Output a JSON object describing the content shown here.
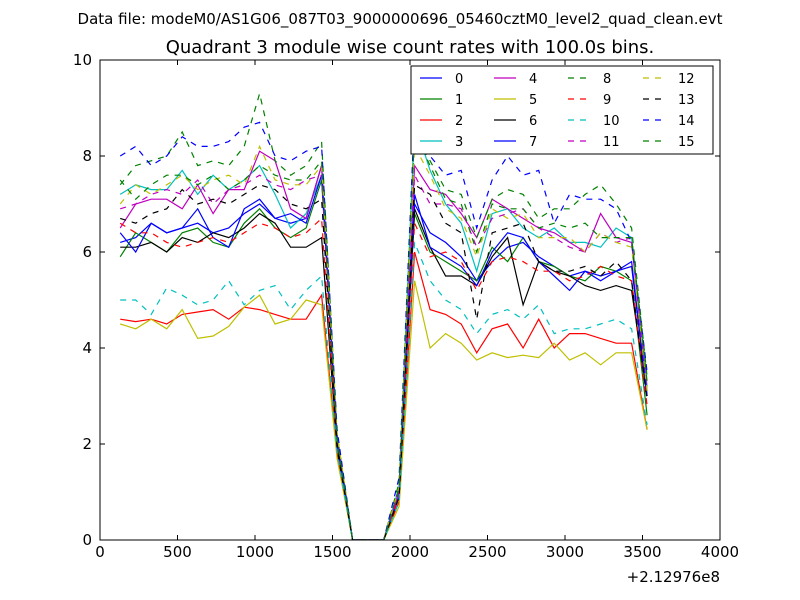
{
  "chart_data": {
    "type": "line",
    "suptitle": "Data file: modeM0/AS1G06_087T03_9000000696_05460cztM0_level2_quad_clean.evt",
    "title": "Quadrant 3 module wise count rates with 100.0s bins.",
    "xlabel": "",
    "ylabel": "",
    "xlim": [
      0,
      4000
    ],
    "ylim": [
      0,
      10
    ],
    "xticks": [
      0,
      500,
      1000,
      1500,
      2000,
      2500,
      3000,
      3500,
      4000
    ],
    "yticks": [
      0,
      2,
      4,
      6,
      8,
      10
    ],
    "x_offset_label": "+2.12976e8",
    "legend_position": "top-right",
    "legend_columns": 4,
    "x": [
      130,
      230,
      330,
      430,
      530,
      630,
      730,
      830,
      930,
      1030,
      1130,
      1230,
      1330,
      1430,
      1530,
      1630,
      1730,
      1830,
      1930,
      2030,
      2130,
      2230,
      2330,
      2430,
      2530,
      2630,
      2730,
      2830,
      2930,
      3030,
      3130,
      3230,
      3330,
      3430,
      3530
    ],
    "series": [
      {
        "name": "0",
        "color": "#0000ff",
        "dash": "solid",
        "values": [
          6.2,
          6.3,
          6.6,
          6.4,
          6.5,
          6.6,
          6.4,
          6.5,
          6.8,
          7.0,
          6.7,
          6.6,
          6.7,
          7.8,
          2.0,
          0,
          0,
          0,
          1.0,
          7.0,
          6.4,
          6.2,
          5.9,
          5.4,
          5.8,
          6.1,
          6.2,
          5.9,
          5.7,
          5.5,
          5.6,
          5.4,
          5.6,
          5.8,
          3.0
        ]
      },
      {
        "name": "1",
        "color": "#008000",
        "dash": "solid",
        "values": [
          5.9,
          6.4,
          6.2,
          6.0,
          6.4,
          6.5,
          6.2,
          6.1,
          6.6,
          6.9,
          6.5,
          6.3,
          6.5,
          7.5,
          2.2,
          0,
          0,
          0,
          1.0,
          6.8,
          6.0,
          5.8,
          5.6,
          5.4,
          6.1,
          5.8,
          6.3,
          5.8,
          5.7,
          5.5,
          5.4,
          5.7,
          5.6,
          5.4,
          2.6
        ]
      },
      {
        "name": "2",
        "color": "#ff0000",
        "dash": "solid",
        "values": [
          4.6,
          4.55,
          4.6,
          4.5,
          4.7,
          4.75,
          4.8,
          4.6,
          4.85,
          4.8,
          4.7,
          4.6,
          4.6,
          5.1,
          1.8,
          0,
          0,
          0,
          0.8,
          6.0,
          4.8,
          4.7,
          4.5,
          3.9,
          4.4,
          4.5,
          4.0,
          4.6,
          4.0,
          4.3,
          4.3,
          4.2,
          4.1,
          4.1,
          2.3
        ]
      },
      {
        "name": "3",
        "color": "#00bfbf",
        "dash": "solid",
        "values": [
          7.2,
          7.4,
          7.3,
          7.3,
          7.7,
          7.2,
          7.6,
          7.3,
          7.5,
          7.8,
          7.2,
          6.5,
          6.8,
          7.6,
          2.1,
          0,
          0,
          0,
          1.1,
          8.7,
          7.7,
          7.0,
          6.6,
          5.6,
          6.8,
          6.9,
          6.5,
          6.3,
          6.5,
          6.2,
          6.2,
          6.1,
          6.5,
          6.3,
          3.2
        ]
      },
      {
        "name": "4",
        "color": "#bf00bf",
        "dash": "solid",
        "values": [
          6.5,
          7.0,
          7.1,
          7.1,
          6.9,
          7.4,
          6.8,
          7.3,
          7.3,
          8.1,
          7.9,
          6.9,
          6.7,
          7.8,
          2.1,
          0,
          0,
          0,
          1.0,
          7.8,
          7.3,
          7.2,
          6.8,
          6.3,
          7.1,
          6.9,
          6.7,
          6.5,
          6.4,
          6.2,
          6.0,
          6.8,
          6.3,
          6.2,
          3.1
        ]
      },
      {
        "name": "5",
        "color": "#bfbf00",
        "dash": "solid",
        "values": [
          4.5,
          4.4,
          4.6,
          4.4,
          4.8,
          4.2,
          4.25,
          4.45,
          4.85,
          5.1,
          4.5,
          4.6,
          5.0,
          4.9,
          1.7,
          0,
          0,
          0,
          0.7,
          5.4,
          4.0,
          4.3,
          4.1,
          3.75,
          3.9,
          3.8,
          3.85,
          3.8,
          4.1,
          3.75,
          3.9,
          3.65,
          3.9,
          3.9,
          2.3
        ]
      },
      {
        "name": "6",
        "color": "#000000",
        "dash": "solid",
        "values": [
          6.1,
          6.1,
          6.2,
          6.0,
          6.3,
          6.2,
          6.4,
          6.3,
          6.5,
          6.8,
          6.6,
          6.1,
          6.1,
          6.3,
          1.9,
          0,
          0,
          0,
          0.9,
          6.9,
          6.1,
          5.5,
          5.5,
          5.3,
          5.9,
          6.3,
          4.9,
          5.8,
          5.6,
          5.5,
          5.3,
          5.2,
          5.3,
          5.2,
          3.0
        ]
      },
      {
        "name": "7",
        "color": "#0000ff",
        "dash": "solid",
        "values": [
          6.4,
          6.0,
          6.6,
          6.4,
          6.5,
          6.9,
          6.3,
          6.1,
          6.9,
          7.1,
          6.7,
          6.8,
          6.6,
          7.6,
          2.0,
          0,
          0,
          0,
          0.9,
          7.2,
          6.1,
          5.9,
          5.7,
          5.3,
          6.0,
          6.4,
          6.3,
          5.8,
          5.5,
          5.2,
          5.6,
          5.5,
          5.6,
          5.7,
          3.0
        ]
      },
      {
        "name": "8",
        "color": "#008000",
        "dash": "dashed",
        "values": [
          7.4,
          7.8,
          7.9,
          8.0,
          8.5,
          7.8,
          7.9,
          7.8,
          8.2,
          9.3,
          7.9,
          7.6,
          7.8,
          8.3,
          2.2,
          0,
          0,
          0,
          1.2,
          8.4,
          7.9,
          7.3,
          7.2,
          6.3,
          7.1,
          7.3,
          7.2,
          6.7,
          6.9,
          6.9,
          7.2,
          7.4,
          7.0,
          6.5,
          3.4
        ]
      },
      {
        "name": "9",
        "color": "#ff0000",
        "dash": "dashed",
        "values": [
          6.6,
          6.4,
          6.4,
          6.2,
          6.1,
          6.2,
          6.3,
          6.2,
          6.4,
          6.6,
          6.5,
          6.3,
          6.4,
          6.7,
          1.9,
          0,
          0,
          0,
          0.9,
          6.6,
          5.9,
          6.0,
          5.8,
          5.2,
          5.8,
          5.9,
          5.8,
          5.6,
          5.6,
          5.4,
          5.5,
          5.7,
          5.5,
          5.4,
          2.8
        ]
      },
      {
        "name": "10",
        "color": "#00bfbf",
        "dash": "dashed",
        "values": [
          5.0,
          5.0,
          4.7,
          5.25,
          5.1,
          4.9,
          5.0,
          5.4,
          4.9,
          5.2,
          5.3,
          4.8,
          5.2,
          5.5,
          1.8,
          0,
          0,
          0,
          0.8,
          6.2,
          5.4,
          5.0,
          4.8,
          4.3,
          4.7,
          4.8,
          4.6,
          4.9,
          4.3,
          4.4,
          4.4,
          4.5,
          4.6,
          4.4,
          2.4
        ]
      },
      {
        "name": "11",
        "color": "#bf00bf",
        "dash": "dashed",
        "values": [
          6.9,
          7.0,
          7.2,
          7.3,
          7.2,
          7.5,
          7.0,
          7.3,
          7.4,
          7.6,
          7.4,
          7.3,
          7.5,
          7.6,
          2.1,
          0,
          0,
          0,
          1.0,
          7.6,
          7.0,
          7.0,
          6.9,
          6.1,
          6.7,
          6.8,
          6.9,
          6.5,
          6.3,
          6.1,
          6.0,
          6.4,
          6.2,
          6.3,
          3.2
        ]
      },
      {
        "name": "12",
        "color": "#bfbf00",
        "dash": "dashed",
        "values": [
          7.0,
          7.4,
          7.2,
          7.4,
          7.6,
          7.3,
          7.5,
          7.6,
          7.4,
          8.2,
          7.5,
          7.4,
          7.4,
          7.8,
          2.2,
          0,
          0,
          0,
          1.1,
          8.2,
          7.6,
          6.9,
          6.7,
          5.9,
          6.9,
          6.7,
          6.8,
          6.3,
          6.3,
          6.3,
          6.0,
          6.4,
          6.2,
          6.1,
          3.1
        ]
      },
      {
        "name": "13",
        "color": "#000000",
        "dash": "dashed",
        "values": [
          6.7,
          6.6,
          6.8,
          6.9,
          7.3,
          7.0,
          7.1,
          7.0,
          7.2,
          7.4,
          7.3,
          7.0,
          6.9,
          7.1,
          2.0,
          0,
          0,
          0,
          0.9,
          7.4,
          7.2,
          6.6,
          6.4,
          4.6,
          6.4,
          6.5,
          6.6,
          5.8,
          5.6,
          5.6,
          5.7,
          5.5,
          5.8,
          5.4,
          2.9
        ]
      },
      {
        "name": "14",
        "color": "#0000ff",
        "dash": "dashed",
        "values": [
          8.0,
          8.2,
          7.8,
          8.0,
          8.4,
          8.2,
          8.2,
          8.3,
          8.6,
          8.7,
          8.0,
          7.9,
          8.1,
          8.2,
          2.3,
          0,
          0,
          0,
          1.3,
          8.9,
          8.0,
          7.6,
          7.7,
          6.5,
          7.5,
          8.0,
          7.6,
          7.7,
          6.6,
          7.2,
          7.1,
          7.1,
          6.9,
          6.2,
          3.5
        ]
      },
      {
        "name": "15",
        "color": "#008000",
        "dash": "dashed",
        "values": [
          7.5,
          7.1,
          7.4,
          7.6,
          7.6,
          7.4,
          7.6,
          7.3,
          7.5,
          7.8,
          7.6,
          7.5,
          7.5,
          7.9,
          2.1,
          0,
          0,
          0,
          1.1,
          8.5,
          7.8,
          7.1,
          7.0,
          6.0,
          7.0,
          6.9,
          6.9,
          6.5,
          6.6,
          6.5,
          6.6,
          6.3,
          6.3,
          6.3,
          3.3
        ]
      }
    ]
  }
}
